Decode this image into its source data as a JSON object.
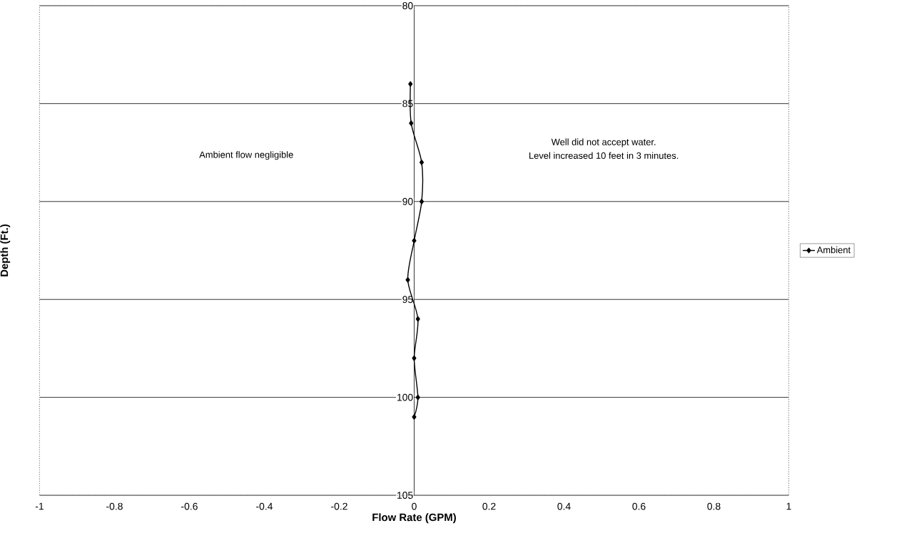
{
  "chart_data": {
    "type": "line",
    "xlabel": "Flow Rate (GPM)",
    "ylabel": "Depth (Ft.)",
    "series": [
      {
        "name": "Ambient",
        "color": "#000000",
        "x": [
          -0.01,
          -0.008,
          0.02,
          0.02,
          0,
          -0.017,
          0.01,
          0,
          0.01,
          0
        ],
        "values": [
          84,
          86,
          88,
          90,
          92,
          94,
          96,
          98,
          100,
          101
        ]
      }
    ],
    "xlim": [
      -1,
      1
    ],
    "xticks": [
      -1,
      -0.8,
      -0.6,
      -0.4,
      -0.2,
      0,
      0.2,
      0.4,
      0.6,
      0.8,
      1
    ],
    "ylim": [
      105,
      80
    ],
    "yticks": [
      80,
      85,
      90,
      95,
      100,
      105
    ],
    "grid": "y",
    "legend": "right",
    "marker": "diamond",
    "line_style": "solid",
    "annotations": [
      "Ambient flow negligible",
      "Well did not accept water.",
      "Level increased 10 feet in 3 minutes."
    ]
  }
}
